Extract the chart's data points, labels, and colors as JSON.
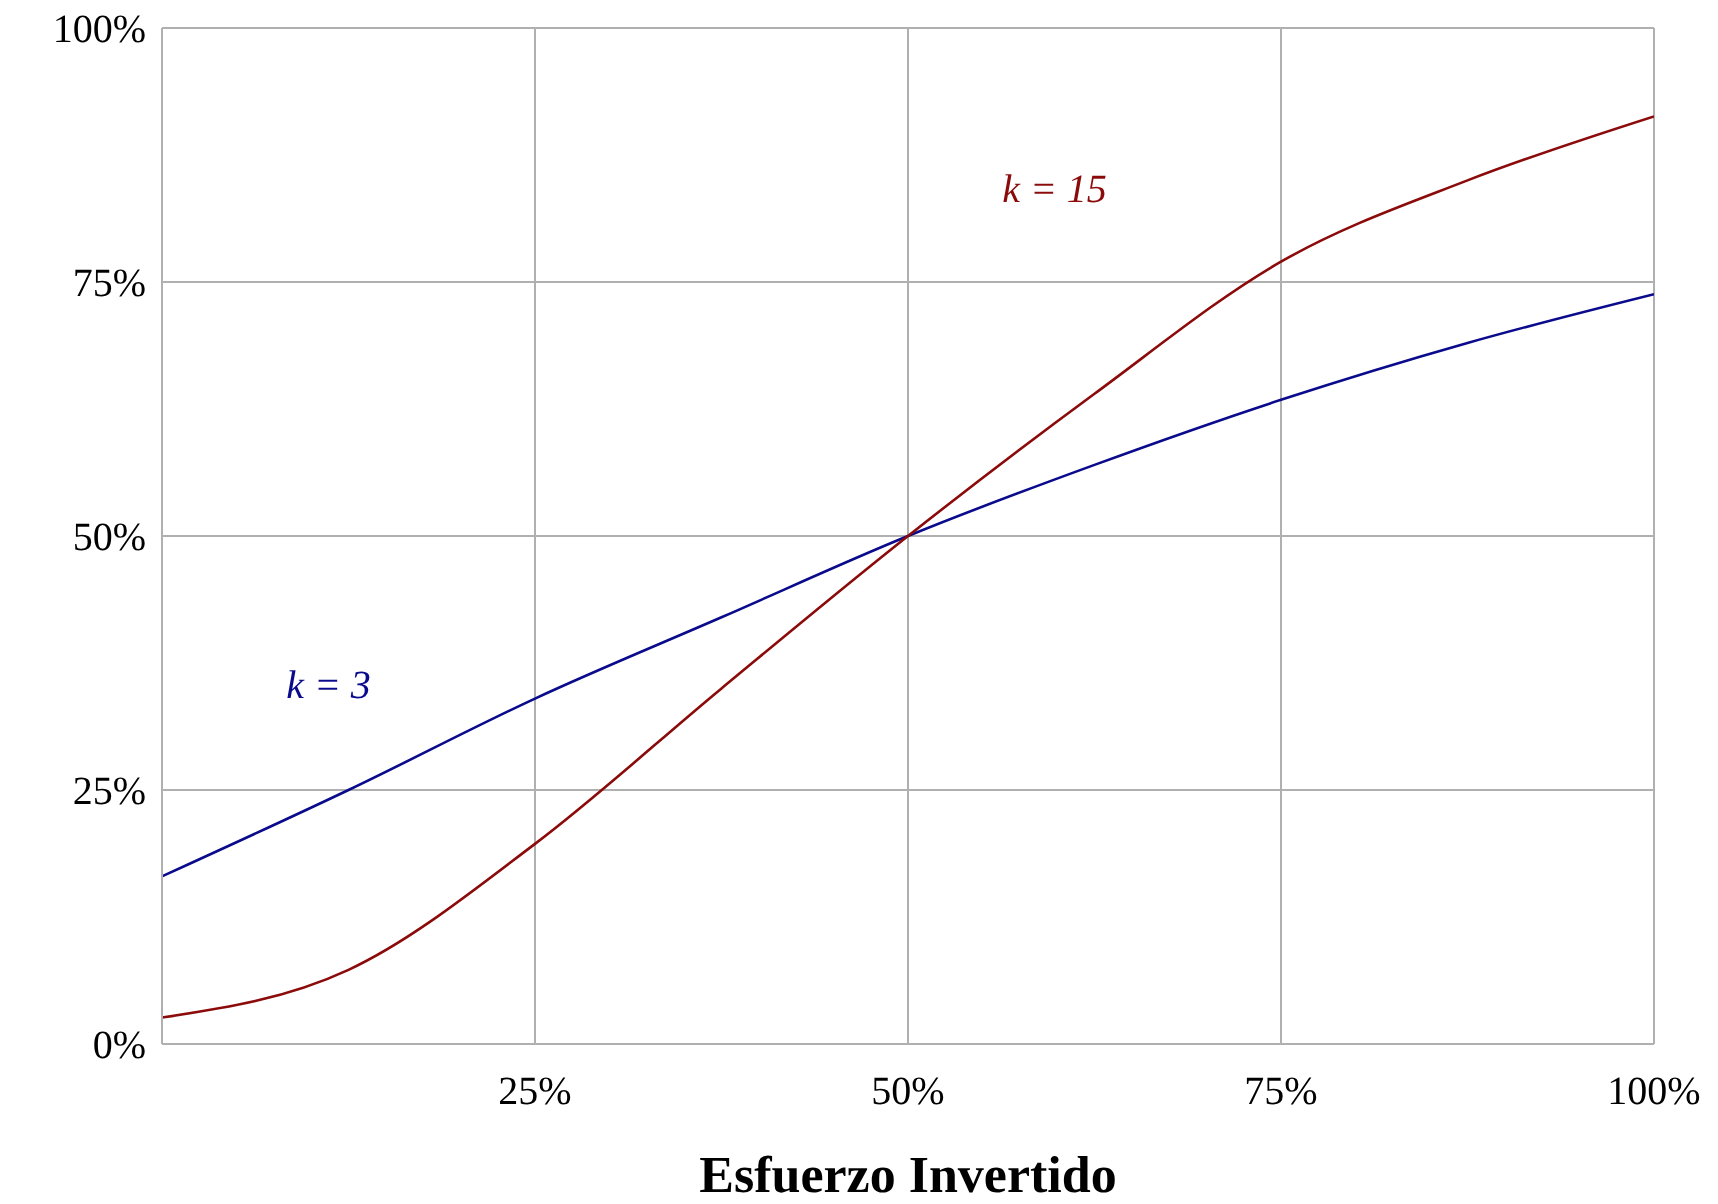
{
  "chart_data": {
    "type": "line",
    "xlabel": "Esfuerzo Invertido",
    "x": [
      0,
      12.5,
      25,
      37.5,
      50,
      62.5,
      75,
      87.5,
      100
    ],
    "series": [
      {
        "name": "k = 3",
        "color": "#0a0a8c",
        "values": [
          16.5,
          25,
          34,
          42,
          50,
          57,
          63.4,
          69,
          73.8
        ]
      },
      {
        "name": "k = 15",
        "color": "#8b0a0a",
        "values": [
          2.6,
          7.3,
          19.7,
          35,
          50,
          64,
          77,
          85,
          91.3
        ]
      }
    ],
    "xlim": [
      0,
      100
    ],
    "ylim": [
      0,
      100
    ],
    "xticks": [
      {
        "value": 0,
        "label": null
      },
      {
        "value": 25,
        "label": "25%"
      },
      {
        "value": 50,
        "label": "50%"
      },
      {
        "value": 75,
        "label": "75%"
      },
      {
        "value": 100,
        "label": "100%"
      }
    ],
    "yticks": [
      {
        "value": 0,
        "label": "0%"
      },
      {
        "value": 25,
        "label": "25%"
      },
      {
        "value": 50,
        "label": "50%"
      },
      {
        "value": 75,
        "label": "75%"
      },
      {
        "value": 100,
        "label": "100%"
      }
    ],
    "grid": true,
    "marker": "none",
    "line_style": "solid"
  }
}
